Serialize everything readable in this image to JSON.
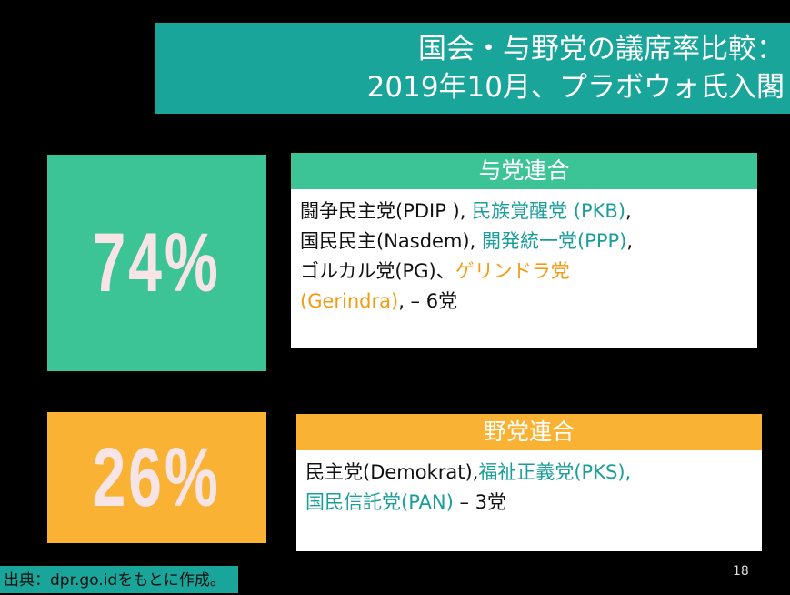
{
  "title": {
    "lines": [
      "国会・与野党の議席率比較：",
      "2019年10月、プラボウォ氏入閣"
    ]
  },
  "coalitions": [
    {
      "percent": "74%",
      "color": "#3cc497",
      "header": "与党連合",
      "lines": [
        [
          {
            "text": "闘争民主党(PDIP ), ",
            "color": "#111111"
          },
          {
            "text": "民族覚醒党 (PKB)",
            "color": "#1a9e9a"
          },
          {
            "text": ",",
            "color": "#111111"
          }
        ],
        [
          {
            "text": "国民民主(Nasdem), ",
            "color": "#111111"
          },
          {
            "text": "開発統一党(PPP)",
            "color": "#1a9e9a"
          },
          {
            "text": ",",
            "color": "#111111"
          }
        ],
        [
          {
            "text": "ゴルカル党(PG)、",
            "color": "#111111"
          },
          {
            "text": "ゲリンドラ党",
            "color": "#f39c12"
          }
        ],
        [
          {
            "text": "(Gerindra)",
            "color": "#f39c12"
          },
          {
            "text": ", – 6党",
            "color": "#111111"
          }
        ]
      ]
    },
    {
      "percent": "26%",
      "color": "#f9b233",
      "header": "野党連合",
      "lines": [
        [
          {
            "text": "民主党(Demokrat),",
            "color": "#111111"
          },
          {
            "text": "福祉正義党(PKS),",
            "color": "#1a9e9a"
          }
        ],
        [
          {
            "text": "国民信託党(PAN)",
            "color": "#1a9e9a"
          },
          {
            "text": " – 3党",
            "color": "#111111"
          }
        ]
      ]
    }
  ],
  "page_number": "18",
  "source": "出典：dpr.go.idをもとに作成。"
}
